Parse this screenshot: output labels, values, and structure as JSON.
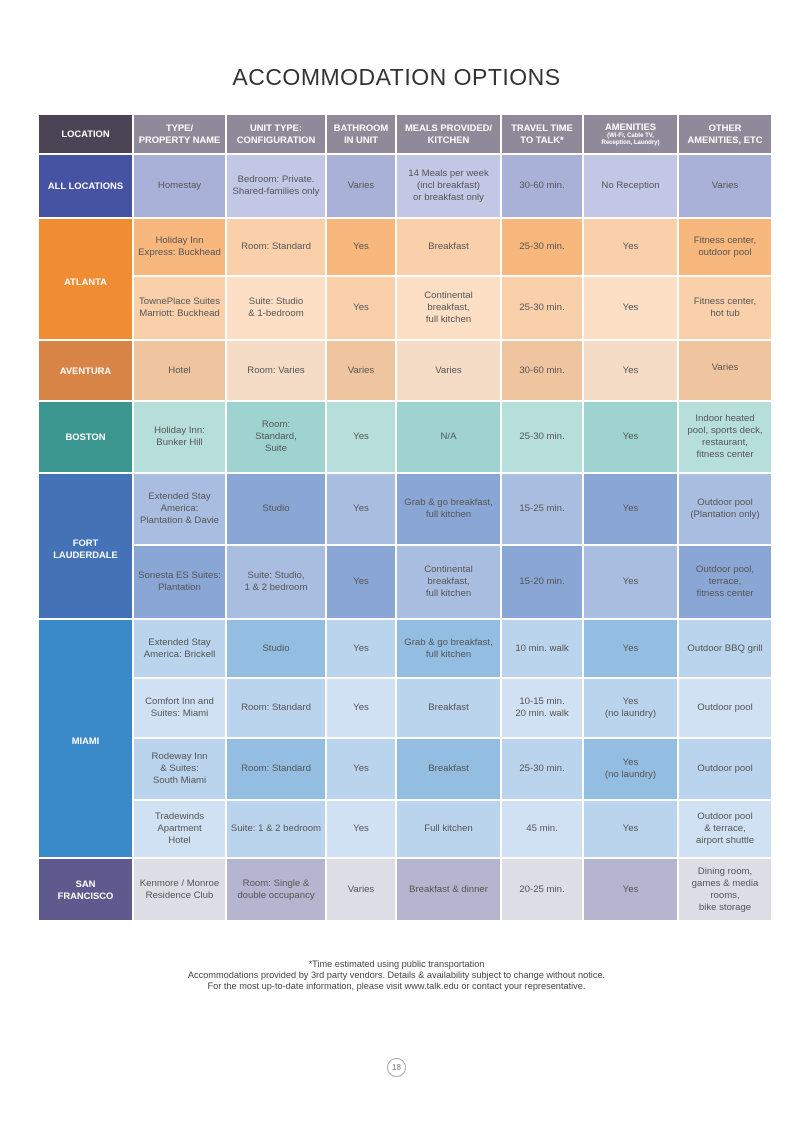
{
  "title": "ACCOMMODATION OPTIONS",
  "headers": {
    "location": "LOCATION",
    "type": "TYPE/\nPROPERTY NAME",
    "unit": "UNIT TYPE:\nCONFIGURATION",
    "bathroom": "BATHROOM\nIN UNIT",
    "meals": "MEALS  PROVIDED/\nKITCHEN",
    "travel": "TRAVEL TIME\nTO TALK*",
    "amenities": "AMENITIES",
    "amenities_sub": "(Wi-Fi, Cable TV,\nReception, Laundry)",
    "other": "OTHER\nAMENITIES, ETC"
  },
  "locations": {
    "all": "ALL LOCATIONS",
    "atlanta": "ATLANTA",
    "aventura": "AVENTURA",
    "boston": "BOSTON",
    "fort_lauderdale": "FORT\nLAUDERDALE",
    "miami": "MIAMI",
    "san_francisco": "SAN\nFRANCISCO"
  },
  "rows": {
    "all": [
      "Homestay",
      "Bedroom: Private.\nShared-families only",
      "Varies",
      "14 Meals per week\n(incl breakfast)\nor breakfast only",
      "30-60 min.",
      "No Reception",
      "Varies"
    ],
    "atl1": [
      "Holiday Inn\nExpress: Buckhead",
      "Room: Standard",
      "Yes",
      "Breakfast",
      "25-30 min.",
      "Yes",
      "Fitness center,\noutdoor pool"
    ],
    "atl2": [
      "TownePlace Suites\nMarriott: Buckhead",
      "Suite: Studio\n& 1-bedroom",
      "Yes",
      "Continental\nbreakfast,\nfull kitchen",
      "25-30 min.",
      "Yes",
      "Fitness center,\nhot tub"
    ],
    "avt": [
      "Hotel",
      "Room: Varies",
      "Varies",
      "Varies",
      "30-60 min.",
      "Yes",
      "Varies"
    ],
    "bos": [
      "Holiday Inn:\nBunker Hill",
      "Room:\nStandard,\nSuite",
      "Yes",
      "N/A",
      "25-30 min.",
      "Yes",
      "Indoor heated\npool, sports deck,\nrestaurant,\nfitness center"
    ],
    "ftl1": [
      "Extended Stay\nAmerica:\nPlantation & Davie",
      "Studio",
      "Yes",
      "Grab & go breakfast,\nfull kitchen",
      "15-25 min.",
      "Yes",
      "Outdoor pool\n(Plantation only)"
    ],
    "ftl2": [
      "Sonesta ES Suites:\nPlantation",
      "Suite: Studio,\n1 & 2 bedroom",
      "Yes",
      "Continental\nbreakfast,\nfull kitchen",
      "15-20 min.",
      "Yes",
      "Outdoor pool,\nterrace,\nfitness center"
    ],
    "mia1": [
      "Extended Stay\nAmerica: Brickell",
      "Studio",
      "Yes",
      "Grab & go breakfast,\nfull kitchen",
      "10 min. walk",
      "Yes",
      "Outdoor BBQ grill"
    ],
    "mia2": [
      "Comfort Inn and\nSuites: Miami",
      "Room: Standard",
      "Yes",
      "Breakfast",
      "10-15 min.\n20 min. walk",
      "Yes\n(no laundry)",
      "Outdoor pool"
    ],
    "mia3": [
      "Rodeway Inn\n& Suites:\nSouth Miami",
      "Room: Standard",
      "Yes",
      "Breakfast",
      "25-30 min.",
      "Yes\n(no laundry)",
      "Outdoor pool"
    ],
    "mia4": [
      "Tradewinds\nApartment\nHotel",
      "Suite: 1 & 2 bedroom",
      "Yes",
      "Full kitchen",
      "45 min.",
      "Yes",
      "Outdoor pool\n& terrace,\nairport shuttle"
    ],
    "sf": [
      "Kenmore / Monroe\nResidence Club",
      "Room: Single &\ndouble occupancy",
      "Varies",
      "Breakfast & dinner",
      "20-25 min.",
      "Yes",
      "Dining room,\ngames & media\nrooms,\nbike storage"
    ]
  },
  "footnote": "*Time estimated using public transportation\nAccommodations provided by 3rd party vendors. Details & availability subject to change without notice.\nFor the most up-to-date information, please visit www.talk.edu or contact your representative.",
  "page_number": "18",
  "colors": {
    "header_dark": "#4a4455",
    "header_mid": "#8f8a9a",
    "all_locations": "#4653a2",
    "atlanta": "#f08c32",
    "aventura": "#d98447",
    "boston": "#3b9690",
    "fort_lauderdale": "#4472b6",
    "miami": "#3a89c8",
    "san_francisco": "#5e5a8e"
  }
}
